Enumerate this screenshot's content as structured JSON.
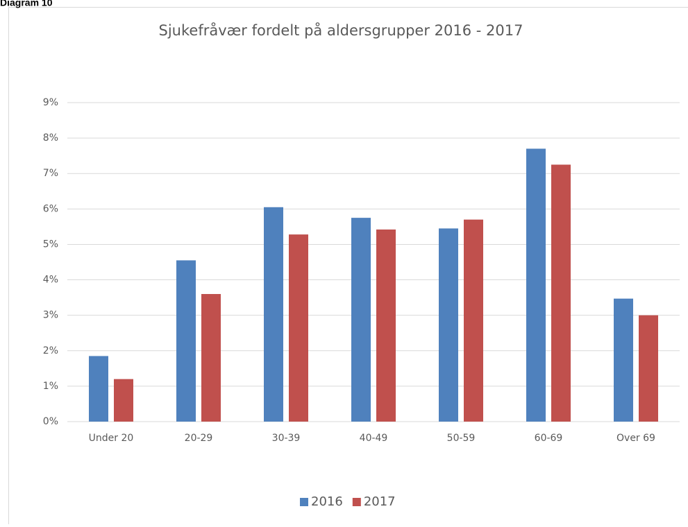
{
  "figure_label": "Diagram 10",
  "chart_data": {
    "type": "bar",
    "title": "Sjukefråvær fordelt på aldersgrupper 2016 - 2017",
    "categories": [
      "Under 20",
      "20-29",
      "30-39",
      "40-49",
      "50-59",
      "60-69",
      "Over 69"
    ],
    "series": [
      {
        "name": "2016",
        "color": "#4f81bd",
        "values": [
          1.85,
          4.55,
          6.05,
          5.75,
          5.45,
          7.7,
          3.47
        ]
      },
      {
        "name": "2017",
        "color": "#c0504d",
        "values": [
          1.2,
          3.6,
          5.28,
          5.42,
          5.7,
          7.25,
          3.0
        ]
      }
    ],
    "ylim": [
      0,
      9
    ],
    "yticks": [
      {
        "value": 0,
        "label": "0%"
      },
      {
        "value": 1,
        "label": "1%"
      },
      {
        "value": 2,
        "label": "2%"
      },
      {
        "value": 3,
        "label": "3%"
      },
      {
        "value": 4,
        "label": "4%"
      },
      {
        "value": 5,
        "label": "5%"
      },
      {
        "value": 6,
        "label": "6%"
      },
      {
        "value": 7,
        "label": "7%"
      },
      {
        "value": 8,
        "label": "8%"
      },
      {
        "value": 9,
        "label": "9%"
      }
    ],
    "grid": true,
    "legend": "bottom"
  }
}
